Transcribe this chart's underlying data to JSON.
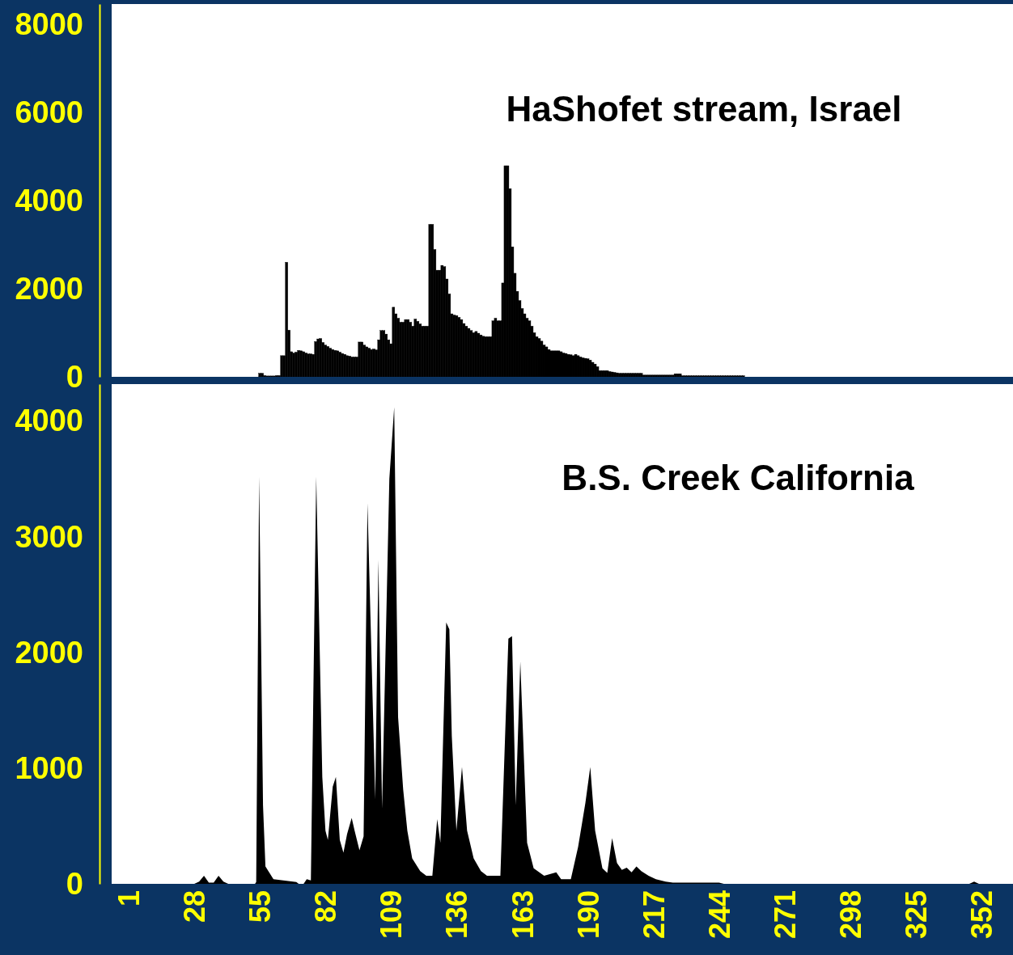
{
  "chart_data": [
    {
      "type": "bar",
      "title": "HaShofet stream, Israel",
      "color": "#000000",
      "xlim": [
        -6,
        365
      ],
      "ylim": [
        0,
        8460
      ],
      "yticks": [
        0,
        2000,
        4000,
        6000,
        8000
      ],
      "tick_labels": "y",
      "x": [
        55,
        56,
        57,
        58,
        59,
        60,
        61,
        62,
        63,
        64,
        65,
        66,
        67,
        68,
        69,
        70,
        71,
        72,
        73,
        74,
        75,
        76,
        77,
        78,
        79,
        80,
        81,
        82,
        83,
        84,
        85,
        86,
        87,
        88,
        89,
        90,
        91,
        92,
        93,
        94,
        95,
        96,
        97,
        98,
        99,
        100,
        101,
        102,
        103,
        104,
        105,
        106,
        107,
        108,
        109,
        110,
        111,
        112,
        113,
        114,
        115,
        116,
        117,
        118,
        119,
        120,
        121,
        122,
        123,
        124,
        125,
        126,
        127,
        128,
        129,
        130,
        131,
        132,
        133,
        134,
        135,
        136,
        137,
        138,
        139,
        140,
        141,
        142,
        143,
        144,
        145,
        146,
        147,
        148,
        149,
        150,
        151,
        152,
        153,
        154,
        155,
        156,
        157,
        158,
        159,
        160,
        161,
        162,
        163,
        164,
        165,
        166,
        167,
        168,
        169,
        170,
        171,
        172,
        173,
        174,
        175,
        176,
        177,
        178,
        179,
        180,
        181,
        182,
        183,
        184,
        185,
        186,
        187,
        188,
        189,
        190,
        191,
        192,
        193,
        194,
        195,
        196,
        197,
        198,
        199,
        200,
        201,
        202,
        203,
        204,
        205,
        206,
        207,
        208,
        209,
        210,
        211,
        212,
        213,
        214,
        215,
        216,
        217,
        218,
        219,
        220,
        221,
        222,
        223,
        224,
        225,
        226,
        227,
        228,
        229,
        230,
        231,
        232,
        233,
        234,
        235,
        236,
        237,
        238,
        239,
        240,
        241,
        242,
        243,
        244,
        245,
        246,
        247,
        248,
        249,
        250,
        251,
        252,
        253,
        254
      ],
      "values": [
        80,
        80,
        30,
        20,
        20,
        20,
        20,
        30,
        30,
        480,
        480,
        2600,
        1060,
        570,
        540,
        560,
        600,
        590,
        570,
        540,
        520,
        520,
        510,
        800,
        860,
        870,
        780,
        720,
        690,
        650,
        620,
        600,
        590,
        560,
        530,
        510,
        480,
        470,
        450,
        450,
        450,
        790,
        790,
        720,
        680,
        650,
        620,
        630,
        610,
        840,
        1050,
        1050,
        970,
        840,
        750,
        1580,
        1430,
        1330,
        1240,
        1240,
        1300,
        1300,
        1240,
        1150,
        1310,
        1260,
        1200,
        1150,
        1150,
        1150,
        3460,
        3460,
        2890,
        2420,
        2420,
        2530,
        2500,
        2220,
        1880,
        1430,
        1400,
        1390,
        1350,
        1300,
        1210,
        1150,
        1100,
        1050,
        1000,
        1030,
        990,
        950,
        920,
        910,
        910,
        910,
        1270,
        1330,
        1270,
        1270,
        2130,
        4790,
        4790,
        4270,
        2950,
        2350,
        1940,
        1730,
        1550,
        1430,
        1330,
        1270,
        1150,
        1000,
        910,
        870,
        810,
        720,
        680,
        620,
        590,
        590,
        590,
        590,
        570,
        540,
        530,
        510,
        500,
        480,
        510,
        480,
        450,
        430,
        420,
        410,
        380,
        330,
        290,
        230,
        140,
        140,
        140,
        140,
        120,
        110,
        100,
        90,
        80,
        80,
        80,
        80,
        80,
        80,
        80,
        80,
        80,
        80,
        40,
        40,
        40,
        40,
        40,
        40,
        40,
        40,
        40,
        40,
        40,
        40,
        40,
        70,
        70,
        70,
        25,
        25,
        25,
        25,
        25,
        25,
        25,
        25,
        25,
        25,
        25,
        25,
        25,
        25,
        25,
        25,
        25,
        25,
        25,
        25,
        25,
        25,
        25,
        25,
        25,
        25
      ]
    },
    {
      "type": "area",
      "title": "B.S. Creek California",
      "color": "#000000",
      "xlim": [
        -6,
        365
      ],
      "ylim": [
        0,
        4320
      ],
      "yticks": [
        0,
        1000,
        2000,
        3000,
        4000
      ],
      "xticks": [
        1,
        28,
        55,
        82,
        109,
        136,
        163,
        190,
        217,
        244,
        271,
        298,
        325,
        352
      ],
      "x": [
        3,
        28,
        30,
        32,
        34,
        36,
        38,
        40,
        42,
        53,
        53.5,
        54.7,
        56.3,
        57.3,
        60.6,
        70,
        71,
        73,
        74.3,
        76,
        78.2,
        80.7,
        82,
        83,
        85,
        86.3,
        87.9,
        89.4,
        90.9,
        92.8,
        94,
        96,
        97.7,
        99.3,
        102.5,
        103.8,
        105.3,
        108.3,
        110.3,
        111.9,
        114,
        115.7,
        117.7,
        121,
        123.5,
        126,
        128,
        129.3,
        131.7,
        133,
        134,
        135.9,
        138.2,
        140.3,
        143,
        146,
        148.5,
        154,
        157.3,
        158.8,
        160.3,
        162.2,
        165,
        167.7,
        172,
        177,
        179,
        183,
        186,
        189,
        191,
        193,
        196,
        198,
        200,
        202,
        204,
        206,
        208,
        210,
        212,
        215,
        218,
        222,
        225,
        244,
        246,
        347,
        349,
        351,
        365
      ],
      "values": [
        0,
        0,
        20,
        70,
        10,
        10,
        70,
        20,
        0,
        0,
        15,
        3520,
        680,
        150,
        40,
        15,
        0,
        0,
        40,
        30,
        3520,
        925,
        460,
        380,
        840,
        925,
        380,
        270,
        430,
        570,
        460,
        290,
        410,
        3290,
        730,
        2800,
        650,
        3500,
        4120,
        1440,
        815,
        460,
        220,
        110,
        70,
        70,
        560,
        355,
        2260,
        2200,
        1280,
        460,
        1010,
        460,
        220,
        110,
        70,
        70,
        2120,
        2140,
        680,
        1920,
        355,
        135,
        70,
        100,
        40,
        40,
        320,
        700,
        1010,
        460,
        135,
        95,
        395,
        180,
        120,
        140,
        100,
        150,
        110,
        70,
        40,
        20,
        10,
        10,
        0,
        0,
        20,
        0,
        0
      ]
    }
  ]
}
